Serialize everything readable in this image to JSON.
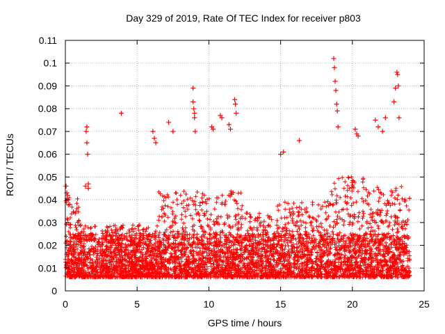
{
  "chart_data": {
    "type": "scatter",
    "title": "Day 329 of 2019, Rate Of TEC Index for receiver p803",
    "xlabel": "GPS time / hours",
    "ylabel": "ROTI / TECUs",
    "xlim": [
      0,
      25
    ],
    "ylim": [
      0,
      0.11
    ],
    "x_ticks": [
      "0",
      "5",
      "10",
      "15",
      "20",
      "25"
    ],
    "y_ticks": [
      "0",
      "0.01",
      "0.02",
      "0.03",
      "0.04",
      "0.05",
      "0.06",
      "0.07",
      "0.08",
      "0.09",
      "0.1",
      "0.11"
    ],
    "grid": true,
    "marker": "plus",
    "color": "#ff0000",
    "series": [
      {
        "x": [
          0.05,
          0.1,
          0.15,
          0.2,
          0.3,
          1.4,
          1.45,
          1.5,
          1.5,
          1.55,
          1.6,
          1.6,
          3.9,
          6.1,
          6.2,
          6.3,
          7.2,
          7.5,
          8.9,
          8.9,
          8.95,
          9.0,
          9.0,
          9.05,
          10.2,
          10.3,
          10.8,
          10.9,
          11.4,
          11.5,
          11.8,
          11.85,
          11.9,
          15.0,
          15.2,
          16.3,
          18.7,
          18.75,
          18.8,
          18.85,
          18.9,
          18.95,
          19.0,
          20.2,
          20.3,
          20.4,
          21.6,
          21.8,
          22.1,
          22.3,
          22.9,
          23.0,
          23.1,
          23.15,
          23.2,
          23.25
        ],
        "y": [
          0.046,
          0.043,
          0.042,
          0.04,
          0.038,
          0.046,
          0.07,
          0.072,
          0.065,
          0.06,
          0.047,
          0.045,
          0.078,
          0.07,
          0.067,
          0.065,
          0.074,
          0.07,
          0.089,
          0.083,
          0.08,
          0.078,
          0.076,
          0.07,
          0.072,
          0.071,
          0.077,
          0.076,
          0.073,
          0.071,
          0.084,
          0.082,
          0.078,
          0.06,
          0.061,
          0.066,
          0.102,
          0.098,
          0.092,
          0.088,
          0.082,
          0.079,
          0.072,
          0.071,
          0.069,
          0.068,
          0.075,
          0.072,
          0.07,
          0.076,
          0.083,
          0.089,
          0.096,
          0.095,
          0.09,
          0.076
        ]
      }
    ]
  }
}
